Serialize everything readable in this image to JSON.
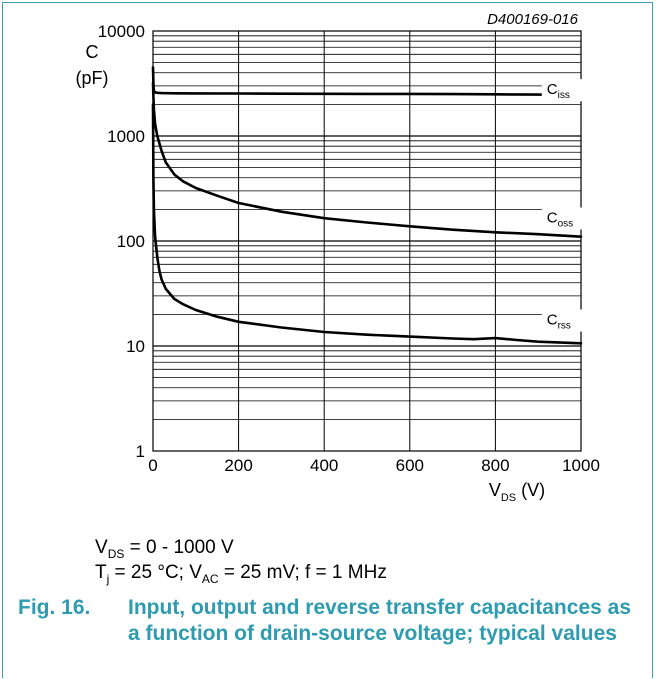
{
  "chart_data": {
    "type": "line",
    "code": "D400169-016",
    "x_scale": "linear",
    "y_scale": "log",
    "xlim": [
      0,
      1000
    ],
    "ylim": [
      1,
      10000
    ],
    "x_ticks": [
      0,
      200,
      400,
      600,
      800,
      1000
    ],
    "y_ticks": [
      1,
      10,
      100,
      1000,
      10000
    ],
    "x_tick_labels": [
      "0",
      "200",
      "400",
      "600",
      "800",
      "1000"
    ],
    "y_tick_labels": [
      "1",
      "10",
      "100",
      "1000",
      "10000"
    ],
    "ylabel_line1": "C",
    "ylabel_line2": "(pF)",
    "xlabel_main": "V",
    "xlabel_sub": "DS",
    "xlabel_unit": " (V)",
    "grid": true,
    "series": [
      {
        "name_main": "C",
        "name_sub": "iss",
        "label_at": [
          920,
          2500
        ],
        "x": [
          0,
          1,
          2,
          5,
          10,
          20,
          50,
          100,
          200,
          300,
          400,
          500,
          600,
          700,
          800,
          900,
          980,
          1000
        ],
        "y": [
          4500,
          3200,
          2700,
          2600,
          2580,
          2560,
          2550,
          2545,
          2540,
          2530,
          2525,
          2520,
          2515,
          2505,
          2495,
          2480,
          2460,
          2440
        ]
      },
      {
        "name_main": "C",
        "name_sub": "oss",
        "label_at": [
          920,
          150
        ],
        "x": [
          0,
          1,
          2,
          5,
          10,
          20,
          30,
          50,
          70,
          100,
          150,
          200,
          300,
          400,
          500,
          600,
          700,
          800,
          900,
          1000
        ],
        "y": [
          3200,
          2400,
          1800,
          1300,
          1000,
          720,
          560,
          430,
          370,
          320,
          270,
          230,
          190,
          165,
          150,
          138,
          128,
          121,
          116,
          110
        ]
      },
      {
        "name_main": "C",
        "name_sub": "rss",
        "label_at": [
          920,
          16
        ],
        "x": [
          0,
          1,
          2,
          5,
          10,
          15,
          20,
          30,
          50,
          70,
          100,
          150,
          200,
          300,
          400,
          500,
          600,
          700,
          750,
          800,
          850,
          900,
          1000
        ],
        "y": [
          2000,
          400,
          200,
          110,
          70,
          52,
          43,
          35,
          28,
          25,
          22,
          19,
          17,
          15,
          13.6,
          12.8,
          12.3,
          11.8,
          11.6,
          11.9,
          11.4,
          11.0,
          10.6
        ]
      }
    ]
  },
  "conditions": {
    "line1": {
      "v": "V",
      "v_sub": "DS",
      "rest": " = 0 - 1000 V"
    },
    "line2": {
      "t": "T",
      "t_sub": "j",
      "mid": " = 25 °C; V",
      "ac_sub": "AC",
      "rest": " = 25 mV; f = 1 MHz"
    }
  },
  "caption": {
    "number": "Fig. 16.",
    "text": "Input, output and reverse transfer capacitances as a function of drain-source voltage; typical values"
  }
}
